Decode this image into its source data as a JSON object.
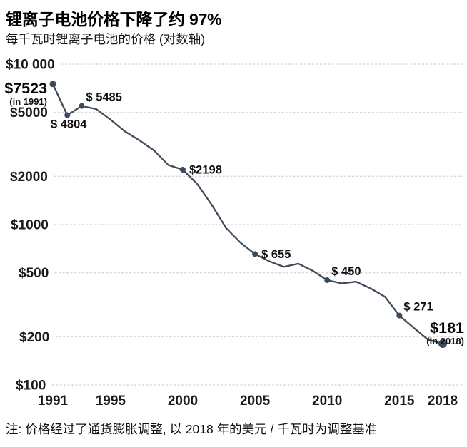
{
  "title": "锂离子电池价格下降了约 97%",
  "subtitle": "每千瓦时锂离子电池的价格 (对数轴)",
  "note": "注: 价格经过了通货膨胀调整, 以 2018 年的美元 / 千瓦时为调整基准",
  "colors": {
    "line": "#404b5a",
    "dot": "#3c4a61",
    "grid": "#d9d9d9",
    "text": "#111111",
    "background": "#ffffff"
  },
  "chart_data": {
    "type": "line",
    "scale_y": "log",
    "ylim": [
      100,
      10000
    ],
    "xlim": [
      1991,
      2018
    ],
    "grid": "horizontal-dotted",
    "y_gridlines": [
      {
        "value": 10000,
        "label": "$10 000"
      },
      {
        "value": 5000,
        "label": "$5000"
      },
      {
        "value": 2000,
        "label": "$2000"
      },
      {
        "value": 1000,
        "label": "$1000"
      },
      {
        "value": 500,
        "label": "$500"
      },
      {
        "value": 200,
        "label": "$200"
      },
      {
        "value": 100,
        "label": "$100"
      }
    ],
    "x_ticks": [
      1991,
      1995,
      2000,
      2005,
      2010,
      2015,
      2018
    ],
    "series": [
      {
        "name": "每千瓦时锂离子电池的价格 (2018 美元)",
        "x": [
          1991,
          1992,
          1993,
          1994,
          1995,
          1996,
          1997,
          1998,
          1999,
          2000,
          2001,
          2002,
          2003,
          2004,
          2005,
          2006,
          2007,
          2008,
          2009,
          2010,
          2011,
          2012,
          2013,
          2014,
          2015,
          2016,
          2017,
          2018
        ],
        "values": [
          7523,
          4804,
          5485,
          5250,
          4500,
          3800,
          3350,
          2900,
          2350,
          2198,
          1790,
          1330,
          950,
          770,
          655,
          590,
          545,
          570,
          515,
          450,
          430,
          440,
          400,
          355,
          271,
          227,
          191,
          181
        ]
      }
    ],
    "labeled_points": [
      {
        "year": 1991,
        "value": 7523,
        "label": "$7523",
        "sub": "(in 1991)",
        "placement": "left"
      },
      {
        "year": 1992,
        "value": 4804,
        "label": "$ 4804",
        "placement": "below"
      },
      {
        "year": 1993,
        "value": 5485,
        "label": "$ 5485",
        "placement": "above-right"
      },
      {
        "year": 2000,
        "value": 2198,
        "label": "$2198",
        "placement": "right"
      },
      {
        "year": 2005,
        "value": 655,
        "label": "$ 655",
        "placement": "right"
      },
      {
        "year": 2010,
        "value": 450,
        "label": "$ 450",
        "placement": "above-right"
      },
      {
        "year": 2015,
        "value": 271,
        "label": "$ 271",
        "placement": "above-right"
      },
      {
        "year": 2018,
        "value": 181,
        "label": "$181",
        "sub": "(in 2018)",
        "placement": "above-end"
      }
    ]
  }
}
